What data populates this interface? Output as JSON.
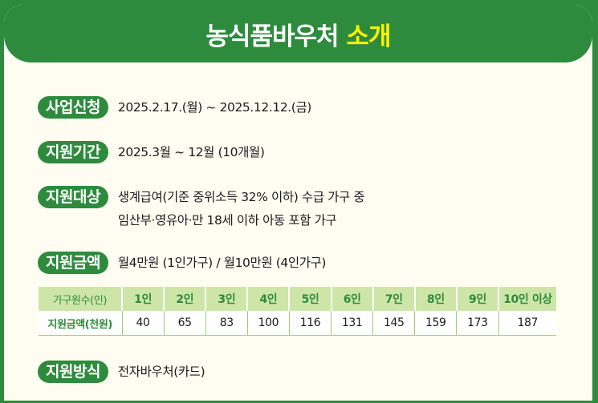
{
  "header": {
    "title_main": "농식품바우처",
    "title_highlight": "소개"
  },
  "sections": {
    "apply": {
      "label": "사업신청",
      "value": "2025.2.17.(월) ~ 2025.12.12.(금)"
    },
    "period": {
      "label": "지원기간",
      "value": "2025.3월 ~ 12월 (10개월)"
    },
    "target": {
      "label": "지원대상",
      "value_line1": "생계급여(기준 중위소득 32% 이하) 수급 가구 중",
      "value_line2": "임산부·영유아·만 18세 이하 아동 포함 가구"
    },
    "amount": {
      "label": "지원금액",
      "value": "월4만원 (1인가구) / 월10만원 (4인가구)"
    },
    "method": {
      "label": "지원방식",
      "value": "전자바우처(카드)"
    }
  },
  "table": {
    "row_header_1": "가구원수(인)",
    "row_header_2": "지원금액(천원)",
    "columns": [
      "1인",
      "2인",
      "3인",
      "4인",
      "5인",
      "6인",
      "7인",
      "8인",
      "9인",
      "10인 이상"
    ],
    "values": [
      "40",
      "65",
      "83",
      "100",
      "116",
      "131",
      "145",
      "159",
      "173",
      "187"
    ]
  },
  "colors": {
    "brand_green": "#2e8b3e",
    "highlight_yellow": "#fff200",
    "table_header_bg": "#cde6a8",
    "card_bg": "#fffdf2"
  }
}
